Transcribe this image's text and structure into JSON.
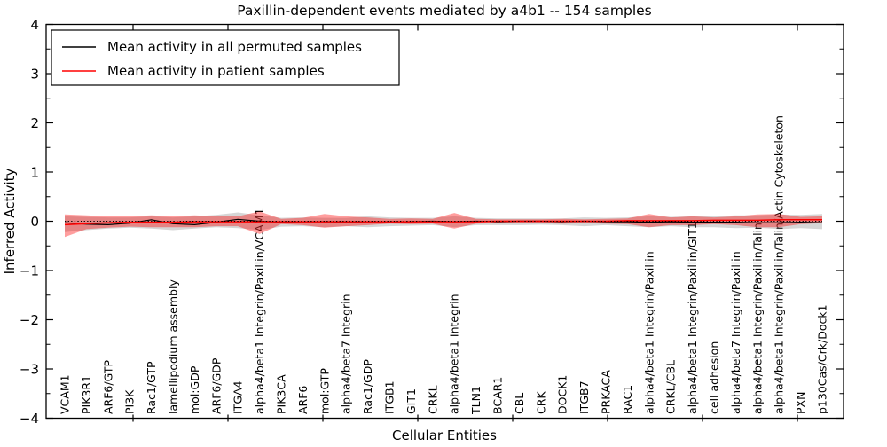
{
  "title": "Paxillin-dependent events mediated by a4b1 -- 154 samples",
  "chart_data": {
    "type": "line",
    "title": "Paxillin-dependent events mediated by a4b1 -- 154 samples",
    "xlabel": "Cellular Entities",
    "ylabel": "Inferred Activity",
    "ylim": [
      -4,
      4
    ],
    "ytick_labels": [
      "4",
      "3",
      "2",
      "1",
      "0",
      "−1",
      "−2",
      "−3",
      "−4"
    ],
    "grid": false,
    "legend_position": "upper left",
    "zero_reference_line": true,
    "categories": [
      "VCAM1",
      "PIK3R1",
      "ARF6/GTP",
      "PI3K",
      "Rac1/GTP",
      "lamellipodium assembly",
      "mol:GDP",
      "ARF6/GDP",
      "ITGA4",
      "alpha4/beta1 Integrin/Paxillin/VCAM1",
      "PIK3CA",
      "ARF6",
      "mol:GTP",
      "alpha4/beta7 Integrin",
      "Rac1/GDP",
      "ITGB1",
      "GIT1",
      "CRKL",
      "alpha4/beta1 Integrin",
      "TLN1",
      "BCAR1",
      "CBL",
      "CRK",
      "DOCK1",
      "ITGB7",
      "PRKACA",
      "RAC1",
      "alpha4/beta1 Integrin/Paxillin",
      "CRKL/CBL",
      "alpha4/beta1 Integrin/Paxillin/GIT1",
      "cell adhesion",
      "alpha4/beta7 Integrin/Paxillin",
      "alpha4/beta1 Integrin/Paxillin/Talin",
      "alpha4/beta1 Integrin/Paxillin/Talin/Actin Cytoskeleton",
      "PXN",
      "p130Cas/Crk/Dock1"
    ],
    "series": [
      {
        "name": "Mean activity in all permuted samples",
        "color": "#000000",
        "values": [
          -0.03,
          -0.06,
          -0.07,
          -0.04,
          0.03,
          -0.05,
          -0.07,
          -0.02,
          0.04,
          0.0,
          -0.02,
          -0.01,
          -0.01,
          -0.02,
          -0.01,
          -0.01,
          -0.01,
          0.0,
          -0.01,
          0.0,
          -0.01,
          0.0,
          0.0,
          -0.01,
          0.0,
          -0.01,
          -0.01,
          -0.02,
          -0.01,
          -0.02,
          -0.02,
          -0.02,
          -0.03,
          -0.03,
          -0.02,
          -0.03
        ]
      },
      {
        "name": "Mean activity in patient samples",
        "color": "#ff0000",
        "values": [
          -0.07,
          -0.05,
          -0.03,
          -0.02,
          -0.02,
          -0.02,
          -0.01,
          -0.01,
          -0.01,
          -0.01,
          -0.01,
          -0.01,
          -0.01,
          -0.01,
          -0.01,
          -0.01,
          -0.01,
          -0.01,
          -0.01,
          -0.01,
          0.0,
          0.0,
          0.0,
          0.0,
          0.0,
          0.0,
          0.01,
          0.01,
          0.01,
          0.01,
          0.02,
          0.02,
          0.02,
          0.03,
          0.03,
          0.03
        ]
      }
    ],
    "bands": [
      {
        "name": "permuted samples std band",
        "color": "#787878",
        "opacity": 0.3,
        "upper": [
          0.1,
          0.09,
          0.08,
          0.08,
          0.1,
          0.08,
          0.1,
          0.13,
          0.18,
          0.12,
          0.07,
          0.08,
          0.07,
          0.07,
          0.1,
          0.08,
          0.07,
          0.07,
          0.1,
          0.07,
          0.06,
          0.06,
          0.06,
          0.06,
          0.08,
          0.07,
          0.08,
          0.1,
          0.09,
          0.1,
          0.1,
          0.12,
          0.12,
          0.14,
          0.13,
          0.15
        ],
        "lower": [
          -0.22,
          -0.18,
          -0.15,
          -0.13,
          -0.15,
          -0.18,
          -0.15,
          -0.12,
          -0.14,
          -0.18,
          -0.11,
          -0.1,
          -0.12,
          -0.1,
          -0.12,
          -0.1,
          -0.09,
          -0.08,
          -0.12,
          -0.08,
          -0.08,
          -0.08,
          -0.07,
          -0.08,
          -0.1,
          -0.08,
          -0.1,
          -0.12,
          -0.1,
          -0.12,
          -0.12,
          -0.14,
          -0.13,
          -0.16,
          -0.14,
          -0.16
        ]
      },
      {
        "name": "patient samples std band",
        "color": "#ff0000",
        "opacity": 0.38,
        "upper": [
          0.14,
          0.12,
          0.1,
          0.1,
          0.12,
          0.1,
          0.12,
          0.1,
          0.1,
          0.2,
          0.05,
          0.07,
          0.15,
          0.1,
          0.08,
          0.05,
          0.06,
          0.05,
          0.17,
          0.05,
          0.04,
          0.04,
          0.04,
          0.05,
          0.04,
          0.05,
          0.06,
          0.15,
          0.08,
          0.1,
          0.08,
          0.1,
          0.14,
          0.15,
          0.09,
          0.1
        ],
        "lower": [
          -0.32,
          -0.16,
          -0.13,
          -0.11,
          -0.12,
          -0.12,
          -0.12,
          -0.1,
          -0.1,
          -0.26,
          -0.06,
          -0.08,
          -0.13,
          -0.1,
          -0.08,
          -0.05,
          -0.06,
          -0.05,
          -0.15,
          -0.05,
          -0.04,
          -0.04,
          -0.04,
          -0.05,
          -0.04,
          -0.05,
          -0.06,
          -0.12,
          -0.08,
          -0.08,
          -0.06,
          -0.08,
          -0.12,
          -0.12,
          -0.06,
          -0.04
        ]
      }
    ]
  }
}
